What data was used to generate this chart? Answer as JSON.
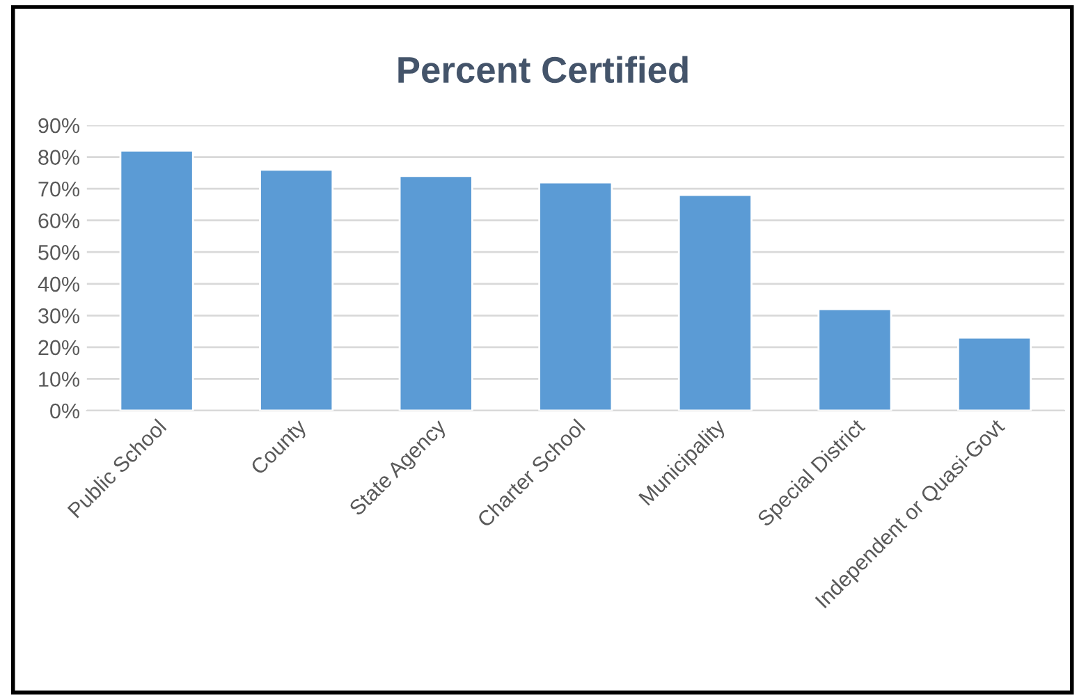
{
  "chart_data": {
    "type": "bar",
    "title": "Percent Certified",
    "categories": [
      "Public School",
      "County",
      "State Agency",
      "Charter School",
      "Municipality",
      "Special District",
      "Independent or Quasi-Govt"
    ],
    "values": [
      82,
      76,
      74,
      72,
      68,
      32,
      23
    ],
    "color": "#5b9bd5",
    "ylim": [
      0,
      90
    ],
    "yticks": [
      {
        "value": 0,
        "label": "0%"
      },
      {
        "value": 10,
        "label": "10%"
      },
      {
        "value": 20,
        "label": "20%"
      },
      {
        "value": 30,
        "label": "30%"
      },
      {
        "value": 40,
        "label": "40%"
      },
      {
        "value": 50,
        "label": "50%"
      },
      {
        "value": 60,
        "label": "60%"
      },
      {
        "value": 70,
        "label": "70%"
      },
      {
        "value": 80,
        "label": "80%"
      },
      {
        "value": 90,
        "label": "90%"
      }
    ],
    "grid": "y",
    "legend": false
  }
}
